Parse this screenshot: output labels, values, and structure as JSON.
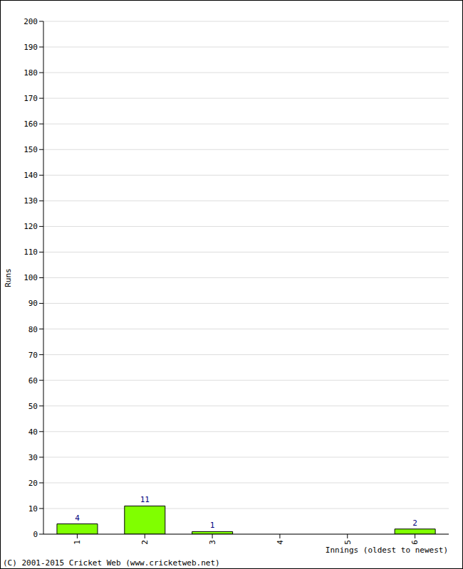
{
  "chart_data": {
    "type": "bar",
    "categories": [
      "1",
      "2",
      "3",
      "4",
      "5",
      "6"
    ],
    "values": [
      4,
      11,
      1,
      0,
      0,
      2
    ],
    "color": "#80ff00",
    "ylim": [
      0,
      200
    ],
    "yticks": [
      0,
      10,
      20,
      30,
      40,
      50,
      60,
      70,
      80,
      90,
      100,
      110,
      120,
      130,
      140,
      150,
      160,
      170,
      180,
      190,
      200
    ],
    "y_label": "Runs",
    "x_label": "Innings (oldest to newest)",
    "annotations": [
      "(C) 2001-2015 Cricket Web (www.cricketweb.net)"
    ],
    "grid": true,
    "data_labels": true
  }
}
